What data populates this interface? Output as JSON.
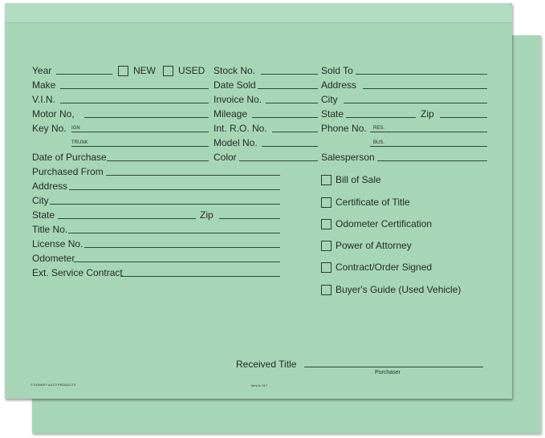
{
  "colors": {
    "paper": "#a7d6b7",
    "line": "#2c4a36",
    "text": "#1f2a22"
  },
  "top": {
    "year": "Year",
    "new": "NEW",
    "used": "USED",
    "make": "Make",
    "vin": "V.I.N.",
    "motor": "Motor No,",
    "key": "Key No.",
    "ign": "IGN",
    "trunk": "TRUNK",
    "date_purchase": "Date of Purchase"
  },
  "mid": {
    "stock": "Stock No.",
    "date_sold": "Date Sold",
    "invoice": "Invoice No.",
    "mileage": "Mileage",
    "int_ro": "Int. R.O. No.",
    "model": "Model No.",
    "color": "Color"
  },
  "right": {
    "sold_to": "Sold To",
    "address": "Address",
    "city": "City",
    "state": "State",
    "zip": "Zip",
    "phone": "Phone No.",
    "res": "RES.",
    "bus": "BUS.",
    "salesperson": "Salesperson"
  },
  "lower": {
    "purchased_from": "Purchased From",
    "address": "Address",
    "city": "City",
    "state": "State",
    "zip": "Zip",
    "title": "Title No.",
    "license": "License No.",
    "odometer": "Odometer",
    "ext": "Ext. Service Contract"
  },
  "checklist": [
    "Bill of Sale",
    "Certificate of Title",
    "Odometer Certification",
    "Power of Attorney",
    "Contract/Order Signed",
    "Buyer's Guide (Used Vehicle)"
  ],
  "footer": {
    "received": "Received Title",
    "purchaser": "Purchaser",
    "brand": "© DONKEY AUTO PRODUCTS",
    "item": "Item #: 317"
  }
}
